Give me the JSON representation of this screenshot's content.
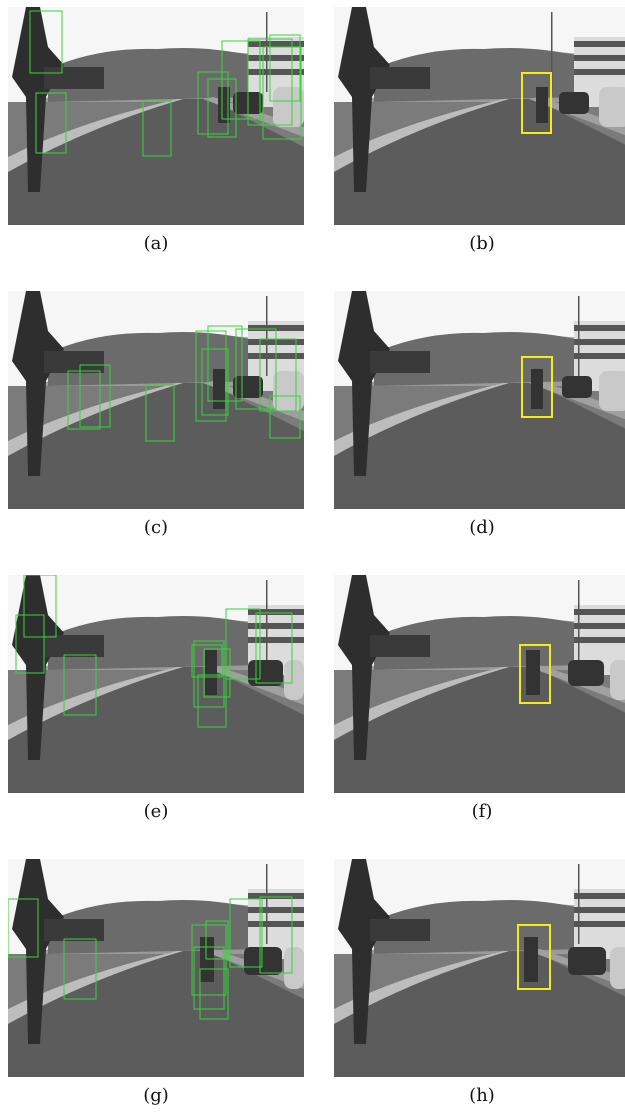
{
  "figure": {
    "panels": [
      {
        "id": "a",
        "caption": "(a)",
        "type": "candidate-detections",
        "variant": "v1"
      },
      {
        "id": "b",
        "caption": "(b)",
        "type": "final-detection",
        "variant": "v1"
      },
      {
        "id": "c",
        "caption": "(c)",
        "type": "candidate-detections",
        "variant": "v2"
      },
      {
        "id": "d",
        "caption": "(d)",
        "type": "final-detection",
        "variant": "v2"
      },
      {
        "id": "e",
        "caption": "(e)",
        "type": "candidate-detections",
        "variant": "v3"
      },
      {
        "id": "f",
        "caption": "(f)",
        "type": "final-detection",
        "variant": "v3"
      },
      {
        "id": "g",
        "caption": "(g)",
        "type": "candidate-detections",
        "variant": "v4"
      },
      {
        "id": "h",
        "caption": "(h)",
        "type": "final-detection",
        "variant": "v4"
      }
    ],
    "colors": {
      "candidate_box": "#39d43a",
      "final_box": "#f2ee14",
      "sky": "#f6f6f6",
      "road": "#5c5c5c",
      "trees": "#6b6b6b",
      "tree_dark": "#2e2e2e"
    }
  }
}
